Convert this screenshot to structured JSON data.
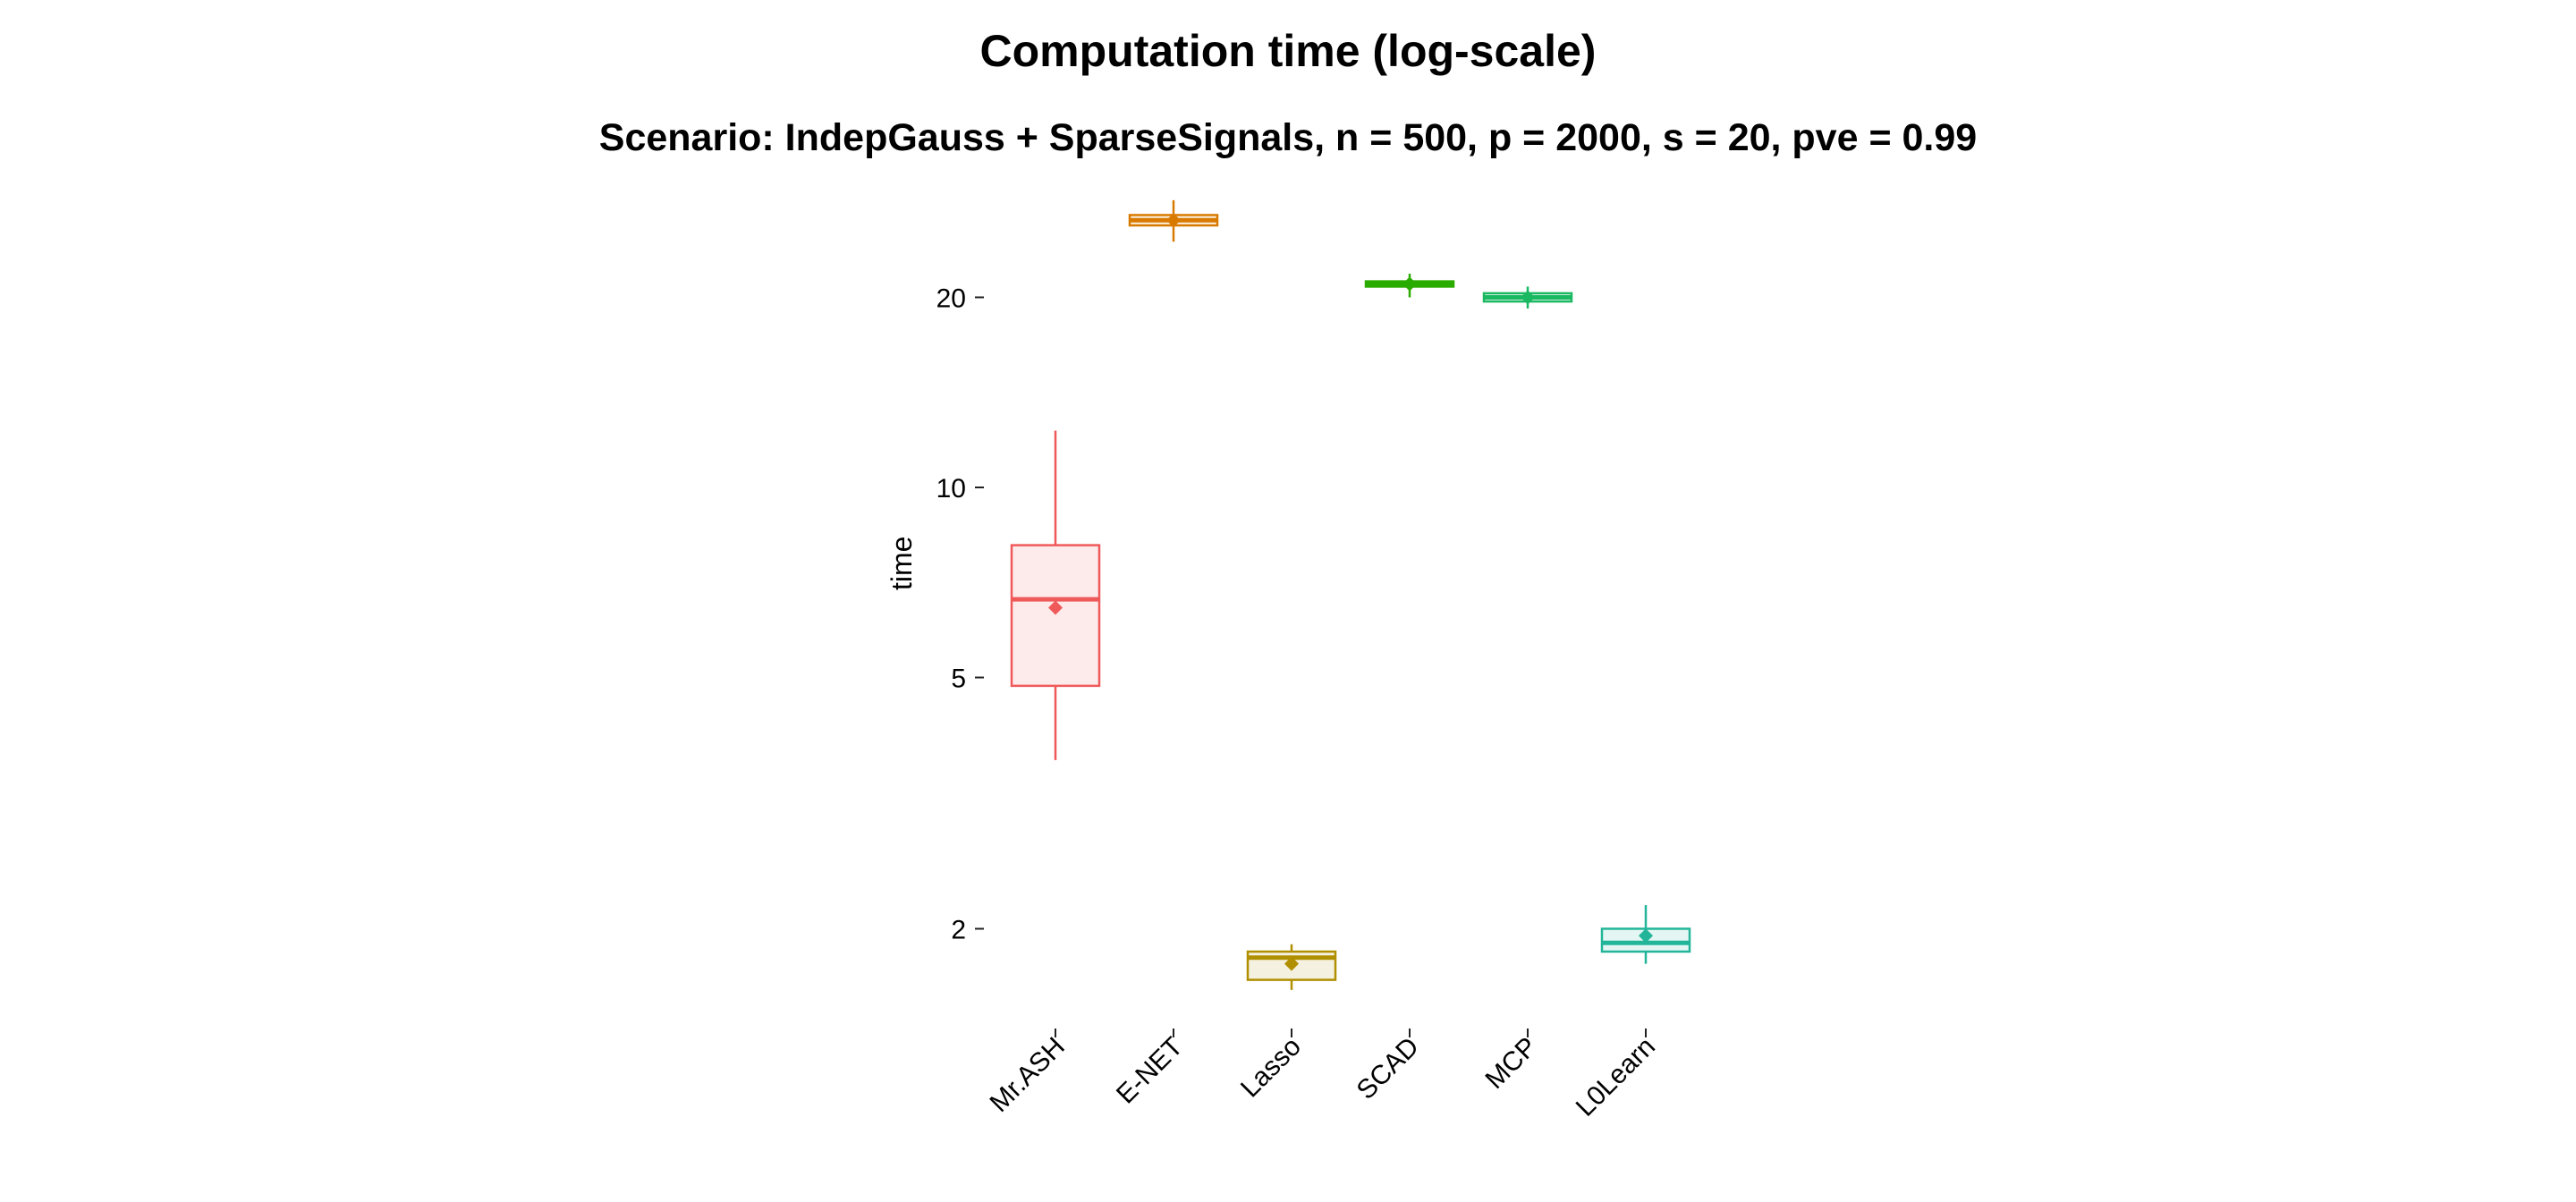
{
  "chart_data": {
    "type": "boxplot",
    "title": "Computation time (log-scale)",
    "subtitle": "Scenario: IndepGauss + SparseSignals, n = 500, p = 2000, s = 20, pve = 0.99",
    "xlabel": "",
    "ylabel": "time",
    "yscale": "log",
    "yticks": [
      2,
      5,
      10,
      20
    ],
    "ytick_labels": [
      "2",
      "5",
      "10",
      "20"
    ],
    "ylim": [
      1.55,
      32
    ],
    "grid": false,
    "legend": "none",
    "categories": [
      "Mr.ASH",
      "E-NET",
      "Lasso",
      "SCAD",
      "MCP",
      "L0Learn"
    ],
    "series": [
      {
        "name": "Mr.ASH",
        "color": "#F0595A",
        "whisker_low": 3.7,
        "q1": 4.85,
        "median": 6.65,
        "q3": 8.1,
        "whisker_high": 12.3,
        "mean": 6.45
      },
      {
        "name": "E-NET",
        "color": "#D97A00",
        "whisker_low": 24.5,
        "q1": 26.0,
        "median": 26.5,
        "q3": 27.0,
        "whisker_high": 28.5,
        "mean": 26.5
      },
      {
        "name": "Lasso",
        "color": "#B08F00",
        "whisker_low": 1.6,
        "q1": 1.66,
        "median": 1.8,
        "q3": 1.84,
        "whisker_high": 1.89,
        "mean": 1.76
      },
      {
        "name": "SCAD",
        "color": "#2AAB00",
        "whisker_low": 20.0,
        "q1": 20.8,
        "median": 21.0,
        "q3": 21.2,
        "whisker_high": 21.8,
        "mean": 21.0
      },
      {
        "name": "MCP",
        "color": "#1BB862",
        "whisker_low": 19.2,
        "q1": 19.7,
        "median": 20.0,
        "q3": 20.3,
        "whisker_high": 20.8,
        "mean": 20.0
      },
      {
        "name": "L0Learn",
        "color": "#22B59A",
        "whisker_low": 1.76,
        "q1": 1.84,
        "median": 1.9,
        "q3": 2.0,
        "whisker_high": 2.18,
        "mean": 1.95
      }
    ]
  }
}
